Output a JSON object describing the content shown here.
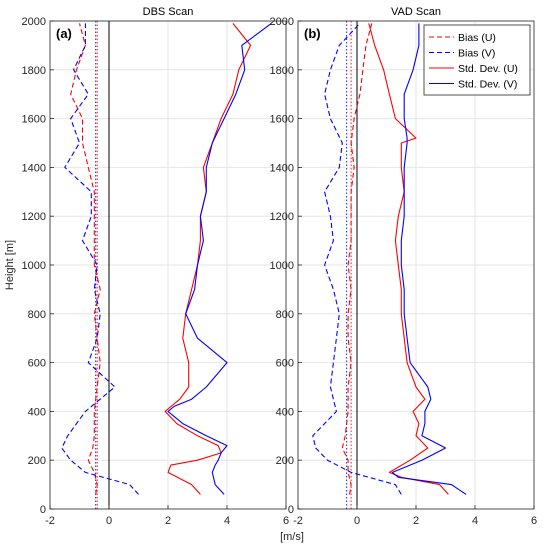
{
  "chart_data": [
    {
      "type": "line",
      "title": "DBS Scan",
      "panel_label": "(a)",
      "xlabel": "",
      "ylabel": "Height [m]",
      "xlim": [
        -2,
        6
      ],
      "ylim": [
        0,
        2000
      ],
      "xticks": [
        -2,
        0,
        2,
        4,
        6
      ],
      "yticks": [
        0,
        200,
        400,
        600,
        800,
        1000,
        1200,
        1400,
        1600,
        1800,
        2000
      ],
      "grid": true,
      "vlines": [
        {
          "x": 0,
          "style": "solid",
          "color": "#000000"
        },
        {
          "x": -0.4,
          "style": "dotted",
          "color": "#ff0000"
        },
        {
          "x": -0.45,
          "style": "dotted",
          "color": "#0000ff"
        }
      ],
      "series": [
        {
          "name": "Bias (U)",
          "color": "#ff0000",
          "dash": "dash",
          "y": [
            60,
            100,
            150,
            200,
            250,
            300,
            400,
            500,
            600,
            700,
            800,
            900,
            1000,
            1100,
            1200,
            1300,
            1400,
            1500,
            1600,
            1700,
            1800,
            1900,
            1990
          ],
          "x": [
            -0.45,
            -0.4,
            -0.5,
            -0.7,
            -0.55,
            -0.5,
            -0.5,
            -0.4,
            -0.3,
            -0.4,
            -0.5,
            -0.3,
            -0.5,
            -0.5,
            -0.5,
            -0.5,
            -0.7,
            -0.9,
            -0.9,
            -1.3,
            -1.1,
            -0.8,
            -1.0
          ]
        },
        {
          "name": "Bias (V)",
          "color": "#0000ff",
          "dash": "dash",
          "y": [
            60,
            100,
            150,
            200,
            250,
            300,
            400,
            500,
            600,
            700,
            800,
            900,
            1000,
            1100,
            1200,
            1300,
            1400,
            1500,
            1600,
            1700,
            1800,
            1900,
            1990
          ],
          "x": [
            1.0,
            0.7,
            -0.8,
            -1.3,
            -1.6,
            -1.4,
            -0.8,
            0.2,
            -0.7,
            -0.4,
            -0.3,
            -0.5,
            -0.4,
            -0.9,
            -0.6,
            -0.6,
            -1.5,
            -1.0,
            -1.3,
            -0.7,
            -1.2,
            -0.8,
            -0.8
          ]
        },
        {
          "name": "Std. Dev. (U)",
          "color": "#ff0000",
          "dash": "solid",
          "y": [
            60,
            100,
            150,
            180,
            200,
            230,
            260,
            300,
            350,
            400,
            420,
            450,
            500,
            600,
            700,
            800,
            900,
            1000,
            1100,
            1200,
            1300,
            1400,
            1500,
            1600,
            1700,
            1800,
            1900,
            1990
          ],
          "x": [
            3.1,
            2.8,
            2.0,
            2.1,
            3.0,
            3.8,
            3.7,
            3.0,
            2.3,
            1.9,
            2.1,
            2.4,
            2.7,
            2.7,
            2.5,
            2.6,
            2.8,
            3.0,
            3.1,
            3.1,
            3.3,
            3.2,
            3.5,
            3.8,
            4.2,
            4.4,
            4.8,
            4.2
          ]
        },
        {
          "name": "Std. Dev. (V)",
          "color": "#0000ff",
          "dash": "solid",
          "y": [
            60,
            100,
            150,
            180,
            200,
            230,
            260,
            300,
            350,
            400,
            420,
            450,
            500,
            600,
            700,
            800,
            900,
            1000,
            1100,
            1200,
            1300,
            1400,
            1500,
            1600,
            1700,
            1800,
            1900,
            1990
          ],
          "x": [
            3.9,
            3.6,
            3.5,
            3.6,
            3.7,
            3.8,
            4.0,
            3.3,
            2.5,
            2.0,
            2.2,
            2.8,
            3.3,
            4.0,
            3.0,
            2.6,
            2.9,
            3.0,
            3.2,
            3.1,
            3.3,
            3.3,
            3.5,
            3.9,
            4.3,
            4.6,
            4.5,
            5.5
          ]
        }
      ]
    },
    {
      "type": "line",
      "title": "VAD Scan",
      "panel_label": "(b)",
      "xlabel": "[m/s]",
      "ylabel": "",
      "xlim": [
        -2,
        6
      ],
      "ylim": [
        0,
        2000
      ],
      "xticks": [
        -2,
        0,
        2,
        4,
        6
      ],
      "yticks": [
        0,
        200,
        400,
        600,
        800,
        1000,
        1200,
        1400,
        1600,
        1800,
        2000
      ],
      "grid": true,
      "legend": "top-right",
      "vlines": [
        {
          "x": 0,
          "style": "solid",
          "color": "#000000"
        },
        {
          "x": -0.2,
          "style": "dotted",
          "color": "#ff0000"
        },
        {
          "x": -0.35,
          "style": "dotted",
          "color": "#0000ff"
        }
      ],
      "series": [
        {
          "name": "Bias (U)",
          "color": "#ff0000",
          "dash": "dash",
          "y": [
            60,
            100,
            150,
            200,
            250,
            300,
            400,
            500,
            600,
            700,
            800,
            900,
            1000,
            1100,
            1200,
            1300,
            1400,
            1500,
            1600,
            1700,
            1800,
            1900,
            1990
          ],
          "x": [
            -0.25,
            -0.2,
            -0.3,
            -0.3,
            -0.5,
            -0.4,
            -0.3,
            -0.3,
            -0.2,
            -0.3,
            -0.3,
            -0.2,
            -0.3,
            -0.2,
            -0.2,
            -0.2,
            -0.1,
            -0.2,
            -0.1,
            0.1,
            0.2,
            0.3,
            0.5
          ]
        },
        {
          "name": "Bias (V)",
          "color": "#0000ff",
          "dash": "dash",
          "y": [
            60,
            100,
            150,
            200,
            250,
            300,
            400,
            500,
            600,
            700,
            800,
            900,
            1000,
            1100,
            1200,
            1300,
            1400,
            1500,
            1600,
            1700,
            1800,
            1900,
            1990
          ],
          "x": [
            1.5,
            1.3,
            -0.2,
            -1.0,
            -1.4,
            -1.5,
            -0.7,
            -0.9,
            -0.8,
            -0.7,
            -0.6,
            -0.8,
            -1.1,
            -0.8,
            -0.9,
            -1.1,
            -0.6,
            -0.5,
            -0.9,
            -1.1,
            -0.9,
            -0.6,
            0.1
          ]
        },
        {
          "name": "Std. Dev. (U)",
          "color": "#ff0000",
          "dash": "solid",
          "y": [
            60,
            100,
            130,
            150,
            200,
            250,
            300,
            350,
            400,
            450,
            500,
            600,
            700,
            800,
            900,
            1000,
            1100,
            1200,
            1300,
            1400,
            1500,
            1520,
            1600,
            1700,
            1800,
            1900,
            1990
          ],
          "x": [
            3.1,
            2.8,
            1.5,
            1.1,
            1.8,
            2.4,
            2.0,
            2.1,
            1.9,
            2.3,
            2.0,
            1.7,
            1.6,
            1.5,
            1.5,
            1.4,
            1.3,
            1.4,
            1.6,
            1.5,
            1.5,
            2.0,
            1.3,
            1.1,
            0.9,
            0.6,
            0.4
          ]
        },
        {
          "name": "Std. Dev. (V)",
          "color": "#0000ff",
          "dash": "solid",
          "y": [
            60,
            100,
            130,
            150,
            200,
            250,
            300,
            350,
            400,
            450,
            500,
            600,
            700,
            800,
            900,
            1000,
            1100,
            1200,
            1300,
            1400,
            1500,
            1520,
            1600,
            1700,
            1800,
            1900,
            1990
          ],
          "x": [
            3.7,
            3.2,
            1.4,
            1.2,
            2.2,
            3.0,
            2.2,
            2.3,
            2.3,
            2.5,
            2.4,
            1.8,
            1.7,
            1.6,
            1.6,
            1.5,
            1.5,
            1.6,
            1.6,
            1.6,
            1.7,
            1.7,
            1.6,
            1.6,
            1.9,
            2.1,
            2.1
          ]
        }
      ]
    }
  ]
}
